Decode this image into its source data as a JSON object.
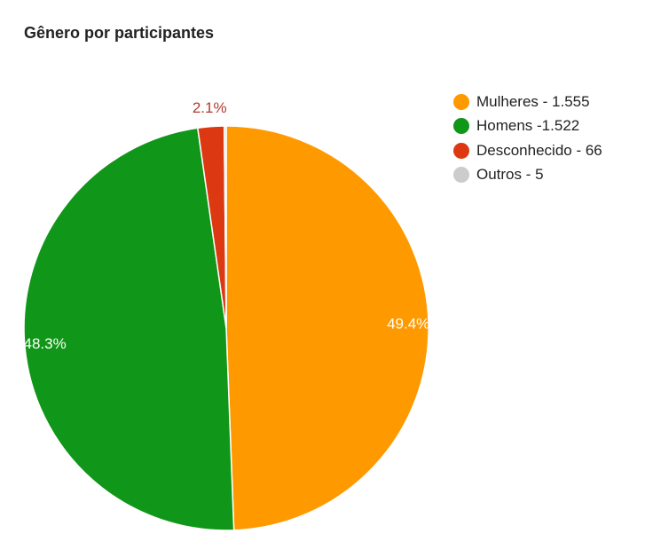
{
  "chart_data": {
    "type": "pie",
    "title": "Gênero por participantes",
    "legend_position": "right",
    "start_angle_deg": 0,
    "direction": "clockwise",
    "slices": [
      {
        "legend_label": "Mulheres - 1.555",
        "value": 1555,
        "percent_label": "49.4%",
        "color": "#ff9900",
        "label_color": "#ffffff"
      },
      {
        "legend_label": "Homens -1.522",
        "value": 1522,
        "percent_label": "48.3%",
        "color": "#109618",
        "label_color": "#ffffff"
      },
      {
        "legend_label": "Desconhecido - 66",
        "value": 66,
        "percent_label": "2.1%",
        "color": "#dc3912",
        "label_color": "#b03a2e"
      },
      {
        "legend_label": "Outros - 5",
        "value": 5,
        "percent_label": "",
        "color": "#cccccc",
        "label_color": "#ffffff"
      }
    ]
  }
}
